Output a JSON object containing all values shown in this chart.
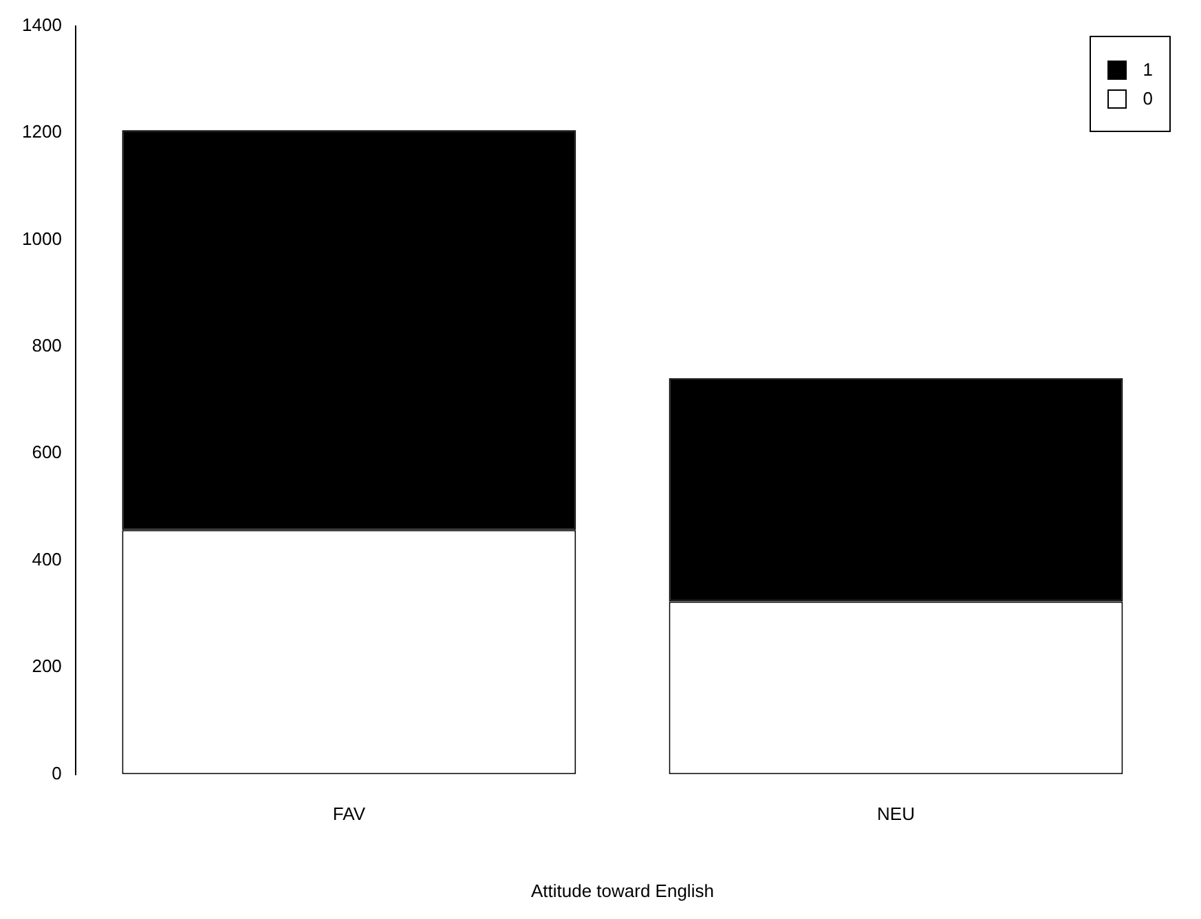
{
  "chart_data": {
    "type": "bar",
    "xlabel": "Attitude toward English",
    "categories": [
      "FAV",
      "NEU"
    ],
    "stacked": true,
    "series": [
      {
        "name": "0",
        "color": "#ffffff",
        "values": [
          457,
          323
        ]
      },
      {
        "name": "1",
        "color": "#000000",
        "values": [
          748,
          418
        ]
      }
    ],
    "ylim": [
      0,
      1400
    ],
    "yticks": [
      0,
      200,
      400,
      600,
      800,
      1000,
      1200,
      1400
    ],
    "grid": false,
    "legend": "top right"
  }
}
